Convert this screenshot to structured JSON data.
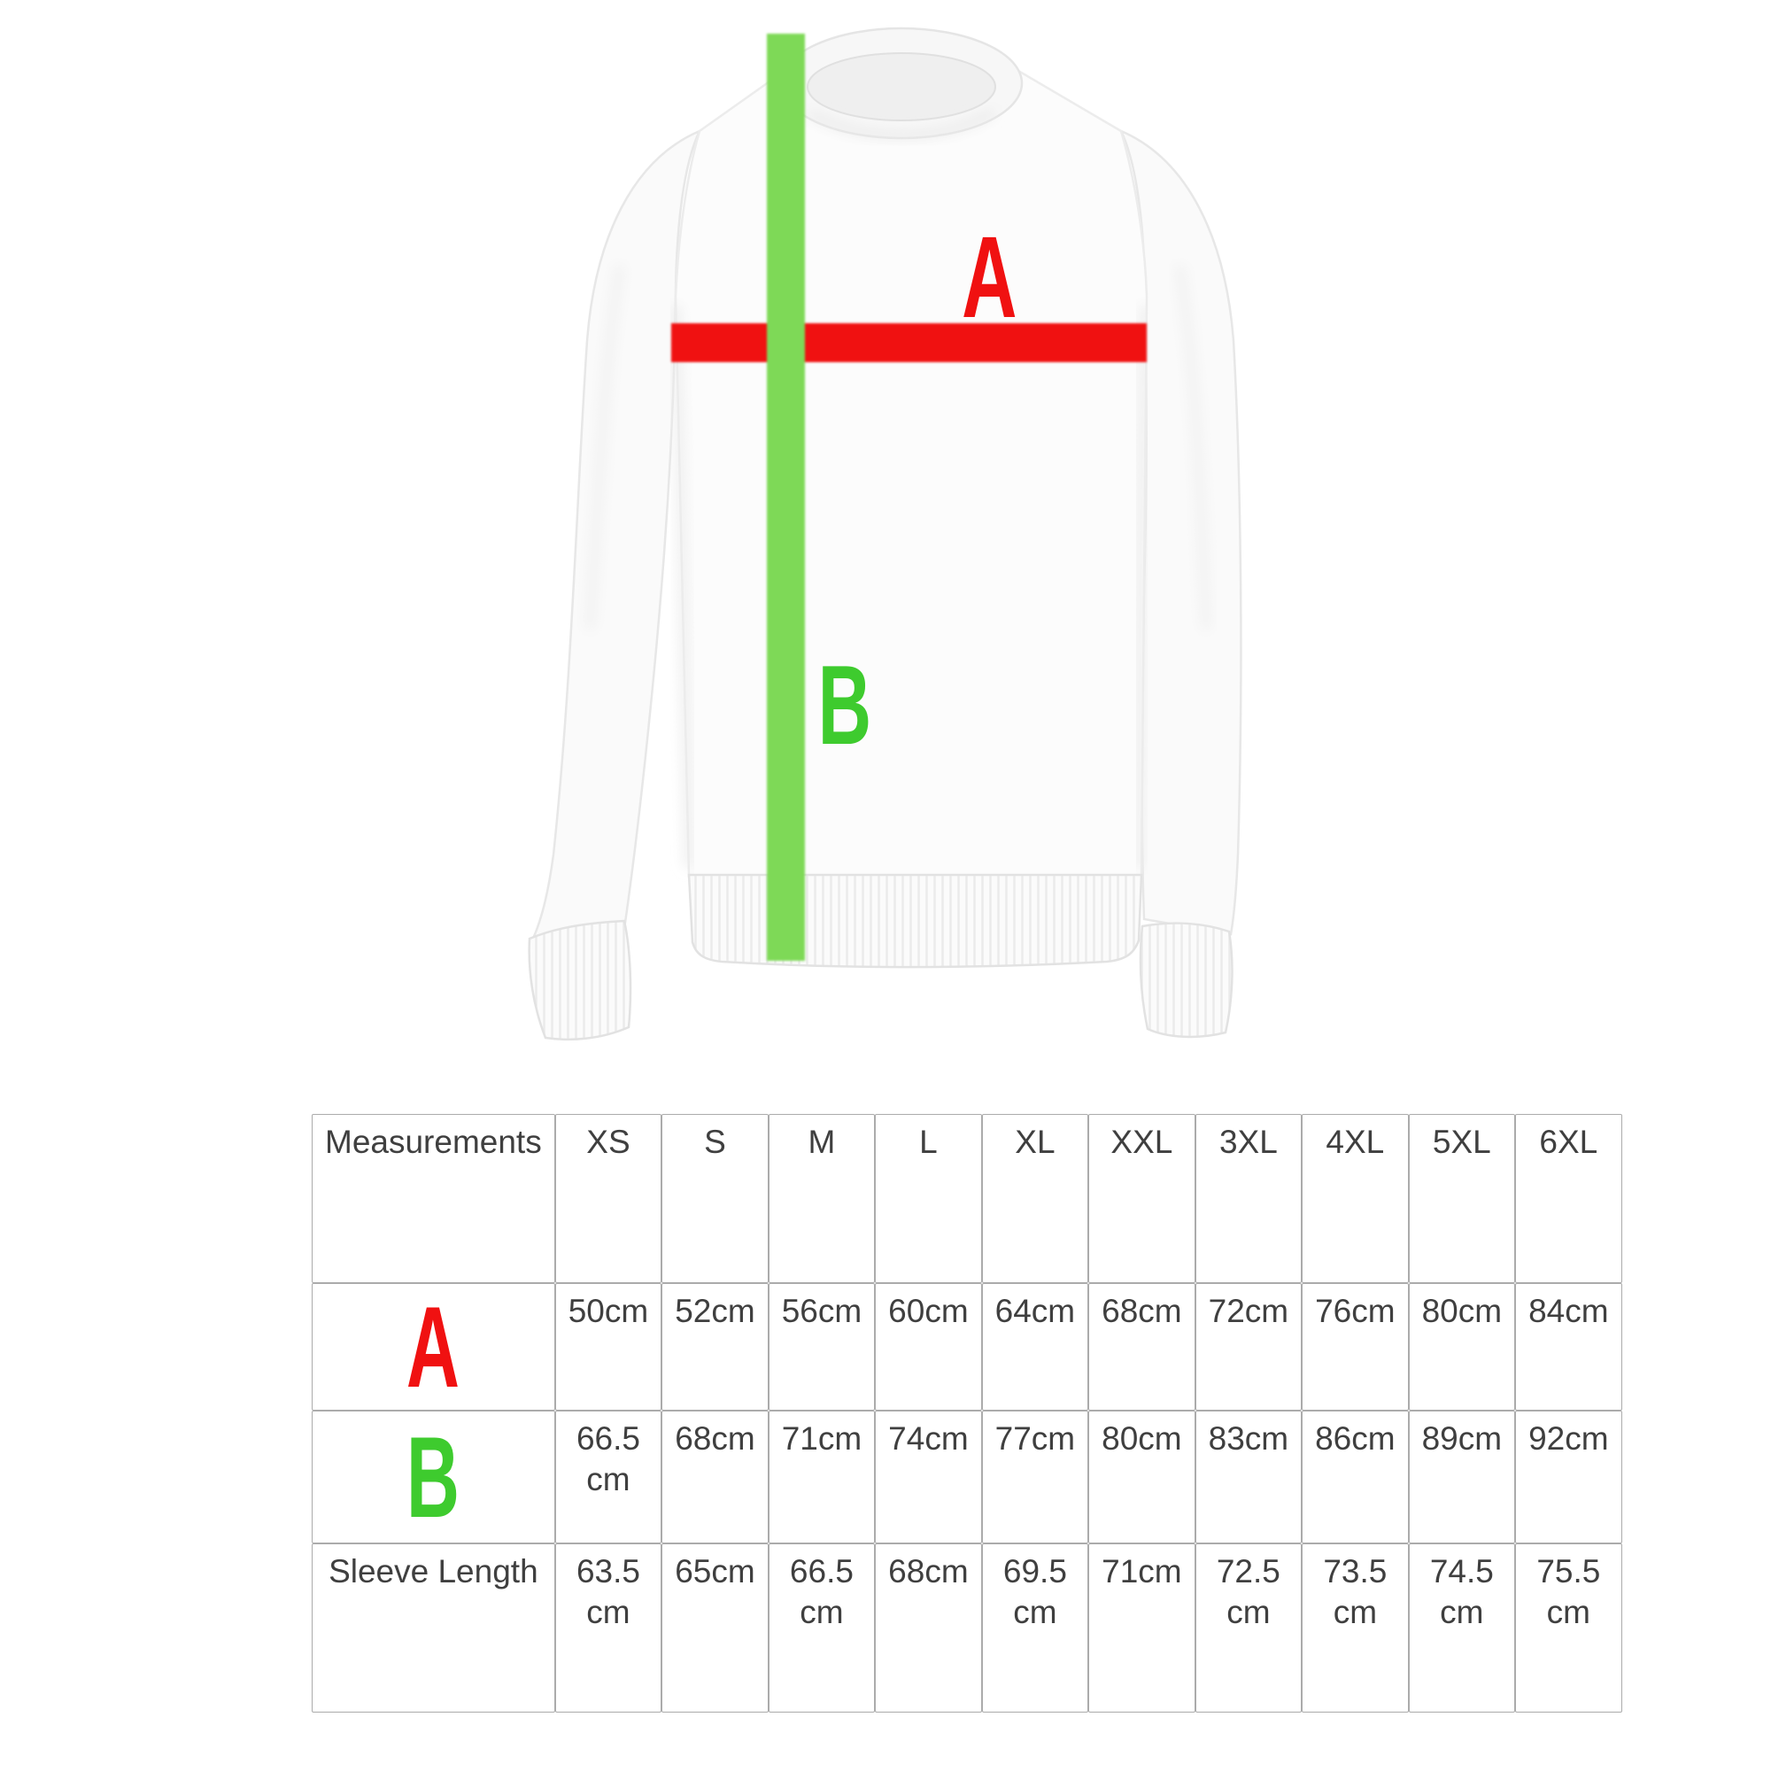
{
  "figure": {
    "letter_a": "A",
    "letter_b": "B",
    "red": "#f01111",
    "green_bar": "#7ed957",
    "green_letter": "#3ecb2e"
  },
  "size_chart": {
    "corner_label": "Measurements",
    "sizes": [
      "XS",
      "S",
      "M",
      "L",
      "XL",
      "XXL",
      "3XL",
      "4XL",
      "5XL",
      "6XL"
    ],
    "rows": [
      {
        "label": "A",
        "label_color": "#f01111",
        "label_is_letter": true,
        "values": [
          "50cm",
          "52cm",
          "56cm",
          "60cm",
          "64cm",
          "68cm",
          "72cm",
          "76cm",
          "80cm",
          "84cm"
        ]
      },
      {
        "label": "B",
        "label_color": "#3ecb2e",
        "label_is_letter": true,
        "values": [
          "66.5 cm",
          "68cm",
          "71cm",
          "74cm",
          "77cm",
          "80cm",
          "83cm",
          "86cm",
          "89cm",
          "92cm"
        ]
      },
      {
        "label": "Sleeve Length",
        "label_color": "#3f3f3f",
        "label_is_letter": false,
        "values": [
          "63.5 cm",
          "65cm",
          "66.5 cm",
          "68cm",
          "69.5 cm",
          "71cm",
          "72.5 cm",
          "73.5 cm",
          "74.5 cm",
          "75.5 cm"
        ]
      }
    ],
    "border_color": "#ababab",
    "text_color": "#3f3f3f"
  },
  "chart_data": {
    "type": "table",
    "columns": [
      "Measurements",
      "XS",
      "S",
      "M",
      "L",
      "XL",
      "XXL",
      "3XL",
      "4XL",
      "5XL",
      "6XL"
    ],
    "rows": [
      [
        "A",
        "50cm",
        "52cm",
        "56cm",
        "60cm",
        "64cm",
        "68cm",
        "72cm",
        "76cm",
        "80cm",
        "84cm"
      ],
      [
        "B",
        "66.5 cm",
        "68cm",
        "71cm",
        "74cm",
        "77cm",
        "80cm",
        "83cm",
        "86cm",
        "89cm",
        "92cm"
      ],
      [
        "Sleeve Length",
        "63.5 cm",
        "65cm",
        "66.5 cm",
        "68cm",
        "69.5 cm",
        "71cm",
        "72.5 cm",
        "73.5 cm",
        "74.5 cm",
        "75.5 cm"
      ]
    ]
  }
}
